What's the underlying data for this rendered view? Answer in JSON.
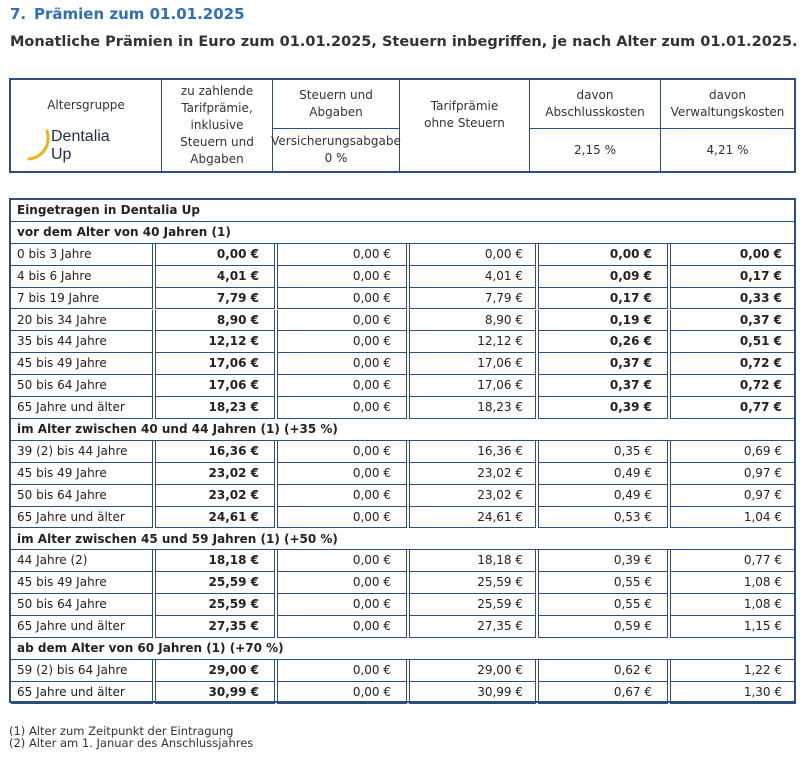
{
  "section": {
    "number": "7.",
    "title": "Prämien zum 01.01.2025"
  },
  "subtitle": "Monatliche Prämien in Euro zum 01.01.2025, Steuern inbegriffen, je nach Alter zum 01.01.2025.",
  "header": {
    "altersgruppe": "Altersgruppe",
    "logo_line1": "Dentalia",
    "logo_line2": "Up",
    "zu_zahlende": "zu zahlende Tarifprämie, inklusive Steuern und Abgaben",
    "steuern": "Steuern und Abgaben",
    "versicherung": "Versicherungsabgabe 0 %",
    "tarifpraemie": "Tarifprämie ohne Steuern",
    "abschluss": "davon Abschlusskosten",
    "abschluss_pct": "2,15 %",
    "verwaltung": "davon Verwaltungskosten",
    "verwaltung_pct": "4,21 %"
  },
  "table": {
    "title": "Eingetragen in Dentalia Up",
    "groups": [
      {
        "label": "vor dem Alter von 40 Jahren (1)",
        "rows": [
          [
            "0 bis 3 Jahre",
            "0,00 €",
            "0,00 €",
            "0,00 €",
            "0,00 €",
            "0,00 €"
          ],
          [
            "4 bis 6 Jahre",
            "4,01 €",
            "0,00 €",
            "4,01 €",
            "0,09 €",
            "0,17 €"
          ],
          [
            "7 bis 19 Jahre",
            "7,79 €",
            "0,00 €",
            "7,79 €",
            "0,17 €",
            "0,33 €"
          ],
          [
            "20 bis 34 Jahre",
            "8,90 €",
            "0,00 €",
            "8,90 €",
            "0,19 €",
            "0,37 €"
          ],
          [
            "35 bis 44 Jahre",
            "12,12 €",
            "0,00 €",
            "12,12 €",
            "0,26 €",
            "0,51 €"
          ],
          [
            "45 bis 49 Jahre",
            "17,06 €",
            "0,00 €",
            "17,06 €",
            "0,37 €",
            "0,72 €"
          ],
          [
            "50 bis 64 Jahre",
            "17,06 €",
            "0,00 €",
            "17,06 €",
            "0,37 €",
            "0,72 €"
          ],
          [
            "65 Jahre und älter",
            "18,23 €",
            "0,00 €",
            "18,23 €",
            "0,39 €",
            "0,77 €"
          ]
        ]
      },
      {
        "label": "im Alter zwischen 40 und 44 Jahren (1) (+35 %)",
        "rows": [
          [
            "39 (2) bis 44 Jahre",
            "16,36 €",
            "0,00 €",
            "16,36 €",
            "0,35 €",
            "0,69 €"
          ],
          [
            "45 bis 49 Jahre",
            "23,02 €",
            "0,00 €",
            "23,02 €",
            "0,49 €",
            "0,97 €"
          ],
          [
            "50 bis 64 Jahre",
            "23,02 €",
            "0,00 €",
            "23,02 €",
            "0,49 €",
            "0,97 €"
          ],
          [
            "65 Jahre und älter",
            "24,61 €",
            "0,00 €",
            "24,61 €",
            "0,53 €",
            "1,04 €"
          ]
        ]
      },
      {
        "label": "im Alter zwischen 45 und 59 Jahren (1) (+50 %)",
        "rows": [
          [
            "44 Jahre (2)",
            "18,18 €",
            "0,00 €",
            "18,18 €",
            "0,39 €",
            "0,77 €"
          ],
          [
            "45 bis 49 Jahre",
            "25,59 €",
            "0,00 €",
            "25,59 €",
            "0,55 €",
            "1,08 €"
          ],
          [
            "50 bis 64 Jahre",
            "25,59 €",
            "0,00 €",
            "25,59 €",
            "0,55 €",
            "1,08 €"
          ],
          [
            "65 Jahre und älter",
            "27,35 €",
            "0,00 €",
            "27,35 €",
            "0,59 €",
            "1,15 €"
          ]
        ]
      },
      {
        "label": "ab dem Alter von 60 Jahren (1) (+70 %)",
        "rows": [
          [
            "59 (2) bis 64 Jahre",
            "29,00 €",
            "0,00 €",
            "29,00 €",
            "0,62 €",
            "1,22 €"
          ],
          [
            "65 Jahre und älter",
            "30,99 €",
            "0,00 €",
            "30,99 €",
            "0,67 €",
            "1,30 €"
          ]
        ]
      }
    ]
  },
  "footnotes": [
    "(1) Alter zum Zeitpunkt der Eintragung",
    "(2) Alter am 1. Januar des Anschlussjahres"
  ],
  "colors": {
    "title_blue": "#2e6fb8",
    "border_navy": "#2c4f7c",
    "logo_gold": "#f2b21b"
  }
}
